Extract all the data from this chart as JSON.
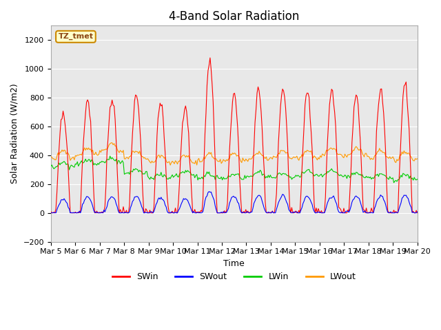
{
  "title": "4-Band Solar Radiation",
  "ylabel": "Solar Radiation (W/m2)",
  "xlabel": "Time",
  "annotation": "TZ_tmet",
  "ylim": [
    -200,
    1300
  ],
  "yticks": [
    -200,
    0,
    200,
    400,
    600,
    800,
    1000,
    1200
  ],
  "background_color": "#ffffff",
  "plot_bg_color": "#e8e8e8",
  "grid_color": "#ffffff",
  "legend": [
    "SWin",
    "SWout",
    "LWin",
    "LWout"
  ],
  "legend_colors": [
    "#ff0000",
    "#0000ff",
    "#00cc00",
    "#ff9900"
  ],
  "SWin_color": "#ff0000",
  "SWout_color": "#0000ff",
  "LWin_color": "#00cc00",
  "LWout_color": "#ff9900",
  "x_tick_labels": [
    "Mar 5",
    "Mar 6",
    "Mar 7",
    "Mar 8",
    "Mar 9",
    "Mar 10",
    "Mar 11",
    "Mar 12",
    "Mar 13",
    "Mar 14",
    "Mar 15",
    "Mar 16",
    "Mar 17",
    "Mar 18",
    "Mar 19",
    "Mar 20"
  ],
  "n_days": 15,
  "title_fontsize": 12,
  "label_fontsize": 9,
  "tick_fontsize": 8
}
